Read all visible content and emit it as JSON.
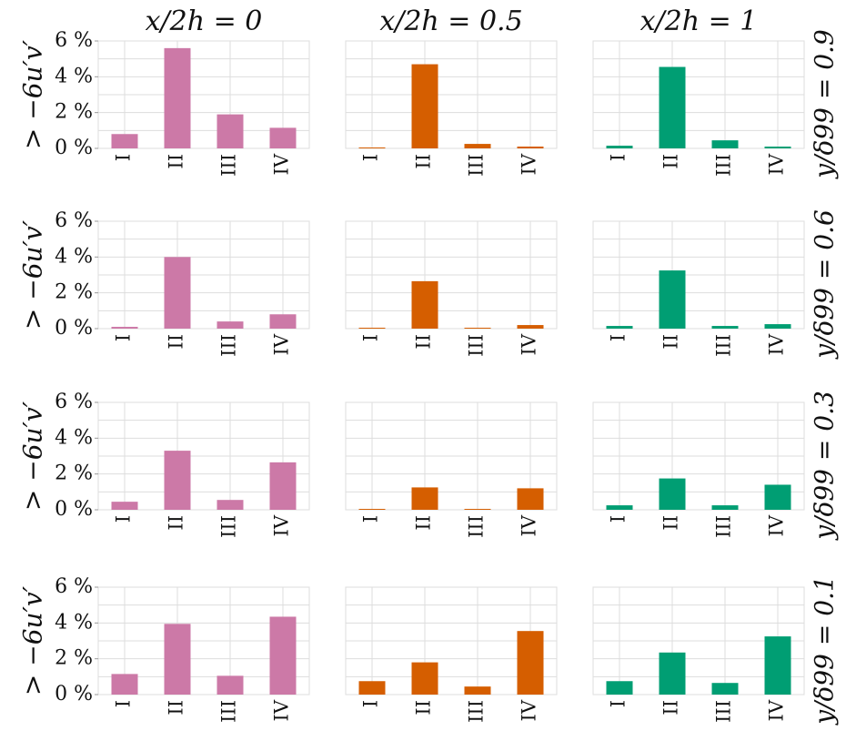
{
  "chart_data": [
    {
      "type": "bar",
      "title": "x/2h = 0",
      "ylabel": "> −6u′v′",
      "categories": [
        "I",
        "II",
        "III",
        "IV"
      ],
      "values": [
        0.8,
        5.6,
        1.9,
        1.15
      ],
      "color": "#cc79a7",
      "ylim": [
        0,
        6
      ],
      "yticks": [
        {
          "value": 0,
          "label": "0 %"
        },
        {
          "value": 2,
          "label": "2 %"
        },
        {
          "value": 4,
          "label": "4 %"
        },
        {
          "value": 6,
          "label": "6 %"
        }
      ],
      "ygrid": [
        0,
        1,
        2,
        3,
        4,
        5,
        6
      ]
    },
    {
      "type": "bar",
      "title": "x/2h = 0.5",
      "categories": [
        "I",
        "II",
        "III",
        "IV"
      ],
      "values": [
        0.05,
        4.7,
        0.25,
        0.1
      ],
      "color": "#d55e00",
      "ylim": [
        0,
        6
      ],
      "ygrid": [
        0,
        1,
        2,
        3,
        4,
        5,
        6
      ]
    },
    {
      "type": "bar",
      "title": "x/2h = 1",
      "right_label": "y/δ99 = 0.9",
      "categories": [
        "I",
        "II",
        "III",
        "IV"
      ],
      "values": [
        0.15,
        4.55,
        0.45,
        0.1
      ],
      "color": "#009e73",
      "ylim": [
        0,
        6
      ],
      "ygrid": [
        0,
        1,
        2,
        3,
        4,
        5,
        6
      ]
    },
    {
      "type": "bar",
      "ylabel": "> −6u′v′",
      "categories": [
        "I",
        "II",
        "III",
        "IV"
      ],
      "values": [
        0.1,
        4.0,
        0.4,
        0.8
      ],
      "color": "#cc79a7",
      "ylim": [
        0,
        6
      ],
      "yticks": [
        {
          "value": 0,
          "label": "0 %"
        },
        {
          "value": 2,
          "label": "2 %"
        },
        {
          "value": 4,
          "label": "4 %"
        },
        {
          "value": 6,
          "label": "6 %"
        }
      ],
      "ygrid": [
        0,
        1,
        2,
        3,
        4,
        5,
        6
      ]
    },
    {
      "type": "bar",
      "categories": [
        "I",
        "II",
        "III",
        "IV"
      ],
      "values": [
        0.05,
        2.65,
        0.05,
        0.2
      ],
      "color": "#d55e00",
      "ylim": [
        0,
        6
      ],
      "ygrid": [
        0,
        1,
        2,
        3,
        4,
        5,
        6
      ]
    },
    {
      "type": "bar",
      "right_label": "y/δ99 = 0.6",
      "categories": [
        "I",
        "II",
        "III",
        "IV"
      ],
      "values": [
        0.15,
        3.25,
        0.15,
        0.25
      ],
      "color": "#009e73",
      "ylim": [
        0,
        6
      ],
      "ygrid": [
        0,
        1,
        2,
        3,
        4,
        5,
        6
      ]
    },
    {
      "type": "bar",
      "ylabel": "> −6u′v′",
      "categories": [
        "I",
        "II",
        "III",
        "IV"
      ],
      "values": [
        0.45,
        3.3,
        0.55,
        2.65
      ],
      "color": "#cc79a7",
      "ylim": [
        0,
        6
      ],
      "yticks": [
        {
          "value": 0,
          "label": "0 %"
        },
        {
          "value": 2,
          "label": "2 %"
        },
        {
          "value": 4,
          "label": "4 %"
        },
        {
          "value": 6,
          "label": "6 %"
        }
      ],
      "ygrid": [
        0,
        1,
        2,
        3,
        4,
        5,
        6
      ]
    },
    {
      "type": "bar",
      "categories": [
        "I",
        "II",
        "III",
        "IV"
      ],
      "values": [
        0.05,
        1.25,
        0.05,
        1.2
      ],
      "color": "#d55e00",
      "ylim": [
        0,
        6
      ],
      "ygrid": [
        0,
        1,
        2,
        3,
        4,
        5,
        6
      ]
    },
    {
      "type": "bar",
      "right_label": "y/δ99 = 0.3",
      "categories": [
        "I",
        "II",
        "III",
        "IV"
      ],
      "values": [
        0.25,
        1.75,
        0.25,
        1.4
      ],
      "color": "#009e73",
      "ylim": [
        0,
        6
      ],
      "ygrid": [
        0,
        1,
        2,
        3,
        4,
        5,
        6
      ]
    },
    {
      "type": "bar",
      "ylabel": "> −6u′v′",
      "categories": [
        "I",
        "II",
        "III",
        "IV"
      ],
      "values": [
        1.15,
        3.95,
        1.05,
        4.35
      ],
      "color": "#cc79a7",
      "ylim": [
        0,
        6
      ],
      "yticks": [
        {
          "value": 0,
          "label": "0 %"
        },
        {
          "value": 2,
          "label": "2 %"
        },
        {
          "value": 4,
          "label": "4 %"
        },
        {
          "value": 6,
          "label": "6 %"
        }
      ],
      "ygrid": [
        0,
        1,
        2,
        3,
        4,
        5,
        6
      ]
    },
    {
      "type": "bar",
      "categories": [
        "I",
        "II",
        "III",
        "IV"
      ],
      "values": [
        0.75,
        1.8,
        0.45,
        3.55
      ],
      "color": "#d55e00",
      "ylim": [
        0,
        6
      ],
      "ygrid": [
        0,
        1,
        2,
        3,
        4,
        5,
        6
      ]
    },
    {
      "type": "bar",
      "right_label": "y/δ99 = 0.1",
      "categories": [
        "I",
        "II",
        "III",
        "IV"
      ],
      "values": [
        0.75,
        2.35,
        0.65,
        3.25
      ],
      "color": "#009e73",
      "ylim": [
        0,
        6
      ],
      "ygrid": [
        0,
        1,
        2,
        3,
        4,
        5,
        6
      ]
    }
  ]
}
